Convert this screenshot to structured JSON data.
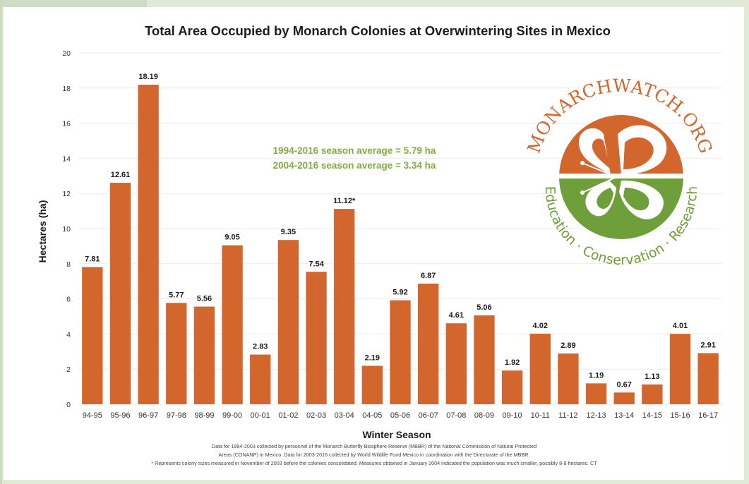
{
  "chart_data": {
    "type": "bar",
    "title": "Total Area Occupied by Monarch Colonies at Overwintering Sites in Mexico",
    "xlabel": "Winter Season",
    "ylabel": "Hectares (ha)",
    "ylim": [
      0,
      20
    ],
    "yticks": [
      "0",
      "2",
      "4",
      "6",
      "8",
      "10",
      "12",
      "14",
      "16",
      "18",
      "20"
    ],
    "categories": [
      "94-95",
      "95-96",
      "96-97",
      "97-98",
      "98-99",
      "99-00",
      "00-01",
      "01-02",
      "02-03",
      "03-04",
      "04-05",
      "05-06",
      "06-07",
      "07-08",
      "08-09",
      "09-10",
      "10-11",
      "11-12",
      "12-13",
      "13-14",
      "14-15",
      "15-16",
      "16-17"
    ],
    "values": [
      7.81,
      12.61,
      18.19,
      5.77,
      5.56,
      9.05,
      2.83,
      9.35,
      7.54,
      11.12,
      2.19,
      5.92,
      6.87,
      4.61,
      5.06,
      1.92,
      4.02,
      2.89,
      1.19,
      0.67,
      1.13,
      4.01,
      2.91
    ],
    "data_labels": [
      "7.81",
      "12.61",
      "18.19",
      "5.77",
      "5.56",
      "9.05",
      "2.83",
      "9.35",
      "7.54",
      "11.12*",
      "2.19",
      "5.92",
      "6.87",
      "4.61",
      "5.06",
      "1.92",
      "4.02",
      "2.89",
      "1.19",
      "0.67",
      "1.13",
      "4.01",
      "2.91"
    ],
    "bar_color": "#d2662c",
    "grid": true,
    "annotations": {
      "avg1": "1994-2016 season average = 5.79 ha",
      "avg2": "2004-2016 season average = 3.34 ha",
      "avg_color": "#7fae3e"
    },
    "footnotes": [
      "Data for 1994-2003 collected by personnel of the Monarch Butterfly Biosphere Reserve (MBBR) of the National Commission of Natural Protected",
      "Areas (CONANP) in Mexico. Data for 2003-2016 collected by World Wildlife Fund Mexico in coordination with the Directorate of the MBBR.",
      "* Represents colony sizes measured in November of 2003 before the colonies consolidated. Measures obtained in January 2004 indicated the population was much smaller, possibly 8-9 hectares. CT"
    ],
    "logo": {
      "name": "monarchwatch-logo",
      "top_text": "MONARCHWATCH.ORG",
      "bottom_text": "Education · Conservation · Research",
      "orange": "#d2662c",
      "green": "#6f9f3a"
    }
  }
}
